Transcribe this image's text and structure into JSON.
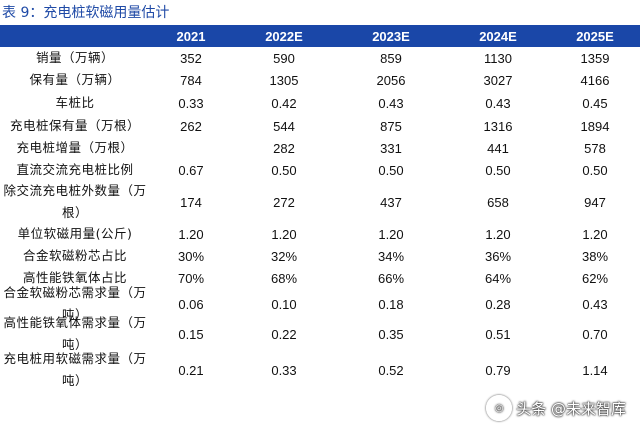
{
  "title": {
    "prefix": "表 9：",
    "text": "充电桩软磁用量估计"
  },
  "columns": [
    "",
    "2021",
    "2022E",
    "2023E",
    "2024E",
    "2025E"
  ],
  "rows": [
    {
      "label": "销量（万辆）",
      "values": [
        "352",
        "590",
        "859",
        "1130",
        "1359"
      ]
    },
    {
      "label": "保有量（万辆）",
      "values": [
        "784",
        "1305",
        "2056",
        "3027",
        "4166"
      ]
    },
    {
      "label": "车桩比",
      "values": [
        "0.33",
        "0.42",
        "0.43",
        "0.43",
        "0.45"
      ]
    },
    {
      "label": "充电桩保有量（万根）",
      "values": [
        "262",
        "544",
        "875",
        "1316",
        "1894"
      ]
    },
    {
      "label": "充电桩增量（万根）",
      "values": [
        "",
        "282",
        "331",
        "441",
        "578"
      ]
    },
    {
      "label": "直流交流充电桩比例",
      "values": [
        "0.67",
        "0.50",
        "0.50",
        "0.50",
        "0.50"
      ]
    },
    {
      "label": "除交流充电桩外数量（万根）",
      "values": [
        "174",
        "272",
        "437",
        "658",
        "947"
      ]
    },
    {
      "label": "单位软磁用量(公斤)",
      "values": [
        "1.20",
        "1.20",
        "1.20",
        "1.20",
        "1.20"
      ]
    },
    {
      "label": "合金软磁粉芯占比",
      "values": [
        "30%",
        "32%",
        "34%",
        "36%",
        "38%"
      ]
    },
    {
      "label": "高性能铁氧体占比",
      "values": [
        "70%",
        "68%",
        "66%",
        "64%",
        "62%"
      ]
    },
    {
      "label": "合金软磁粉芯需求量（万吨）",
      "values": [
        "0.06",
        "0.10",
        "0.18",
        "0.28",
        "0.43"
      ]
    },
    {
      "label": "高性能铁氧体需求量（万吨）",
      "values": [
        "0.15",
        "0.22",
        "0.35",
        "0.51",
        "0.70"
      ]
    },
    {
      "label": "充电桩用软磁需求量（万吨）",
      "values": [
        "0.21",
        "0.33",
        "0.52",
        "0.79",
        "1.14"
      ]
    }
  ],
  "watermark": {
    "text": "头条 @未来智库",
    "logo_glyph": "◎"
  }
}
